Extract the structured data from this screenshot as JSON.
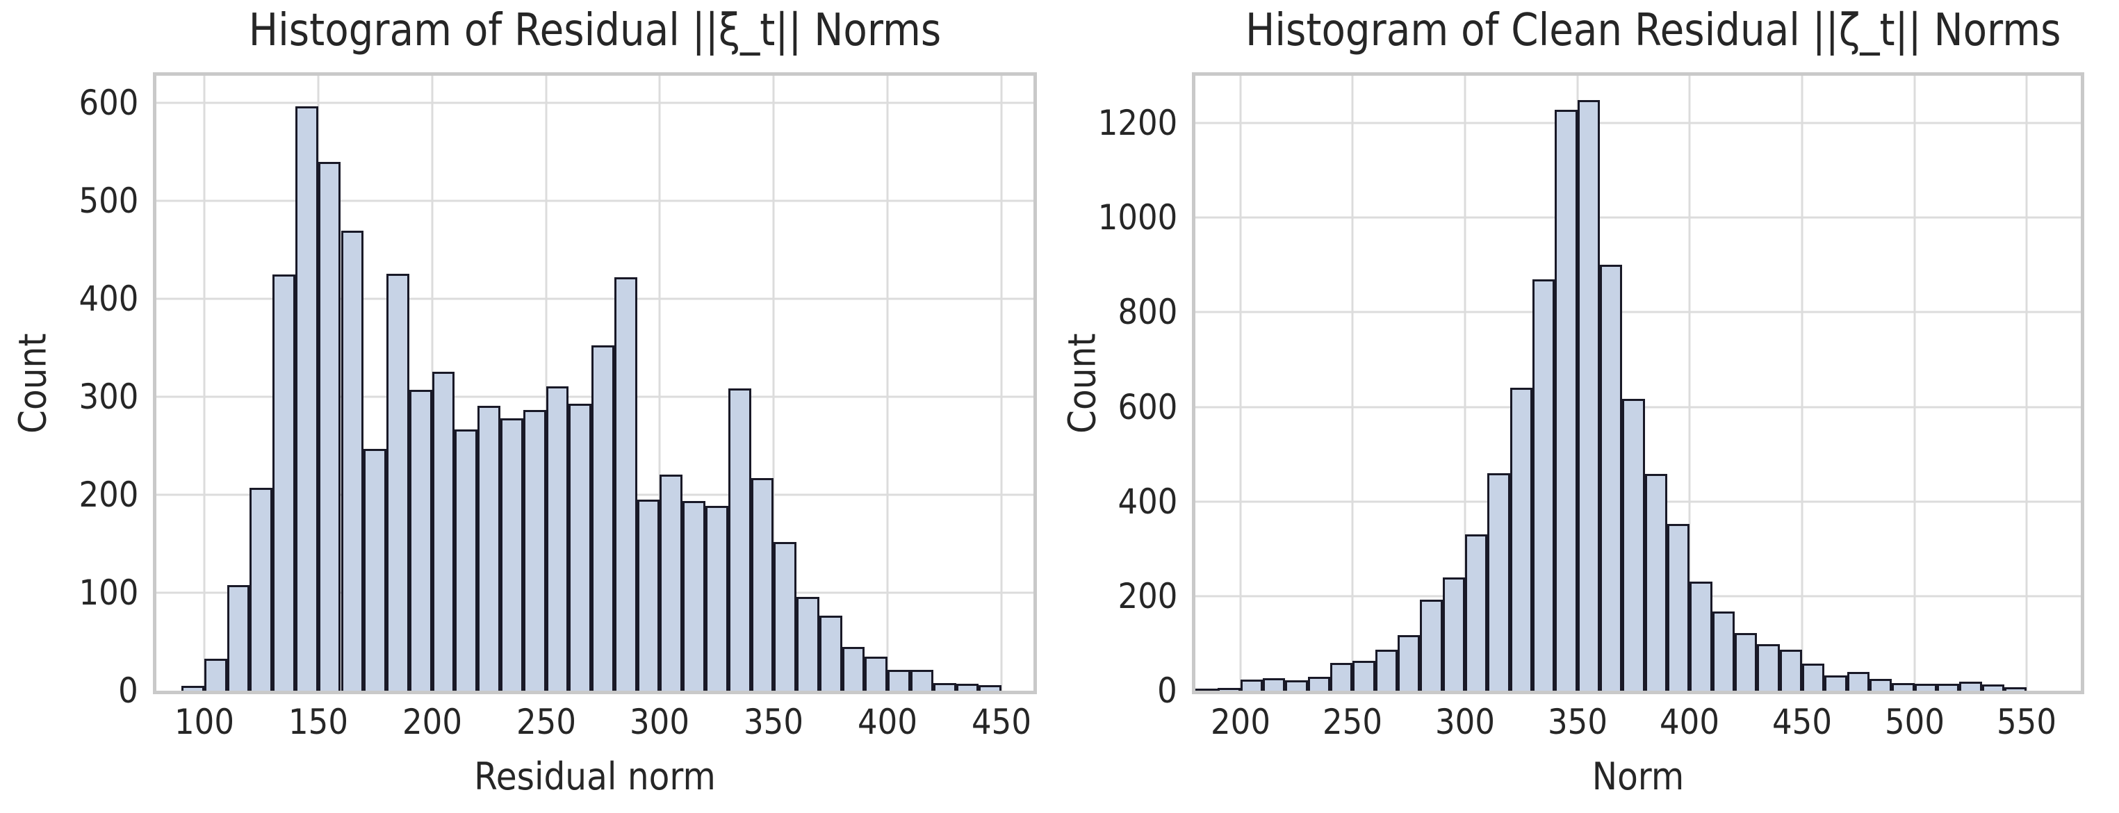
{
  "colors": {
    "background": "#ffffff",
    "bar_fill": "#c7d3e6",
    "bar_edge": "#191927",
    "grid": "#dcdcdc",
    "spine": "#c9c9c9",
    "text": "#262626"
  },
  "chart_data": [
    {
      "type": "bar",
      "subtype": "histogram",
      "title": "Histogram of Residual ||ξ_t|| Norms",
      "xlabel": "Residual norm",
      "ylabel": "Count",
      "bin_start": 90,
      "bin_width": 10,
      "values": [
        5,
        33,
        108,
        207,
        425,
        597,
        540,
        470,
        247,
        426,
        307,
        326,
        267,
        291,
        278,
        287,
        311,
        293,
        353,
        422,
        195,
        221,
        194,
        189,
        309,
        217,
        152,
        96,
        77,
        45,
        35,
        21,
        21,
        8,
        7,
        6
      ],
      "xlim": [
        79,
        464
      ],
      "ylim": [
        0,
        628
      ],
      "xticks": [
        100,
        150,
        200,
        250,
        300,
        350,
        400,
        450
      ],
      "yticks": [
        0,
        100,
        200,
        300,
        400,
        500,
        600
      ],
      "grid": true,
      "legend": null
    },
    {
      "type": "bar",
      "subtype": "histogram",
      "title": "Histogram of Clean Residual ||ζ_t|| Norms",
      "xlabel": "Norm",
      "ylabel": "Count",
      "bin_start": 180,
      "bin_width": 10,
      "values": [
        4,
        6,
        23,
        27,
        22,
        30,
        59,
        63,
        86,
        118,
        192,
        240,
        330,
        460,
        640,
        869,
        1228,
        1248,
        901,
        617,
        459,
        352,
        230,
        168,
        122,
        99,
        87,
        58,
        33,
        40,
        25,
        16,
        14,
        14,
        19,
        13,
        8
      ],
      "xlim": [
        180,
        574
      ],
      "ylim": [
        0,
        1300
      ],
      "xticks": [
        200,
        250,
        300,
        350,
        400,
        450,
        500,
        550
      ],
      "yticks": [
        0,
        200,
        400,
        600,
        800,
        1000,
        1200
      ],
      "grid": true,
      "legend": null
    }
  ]
}
